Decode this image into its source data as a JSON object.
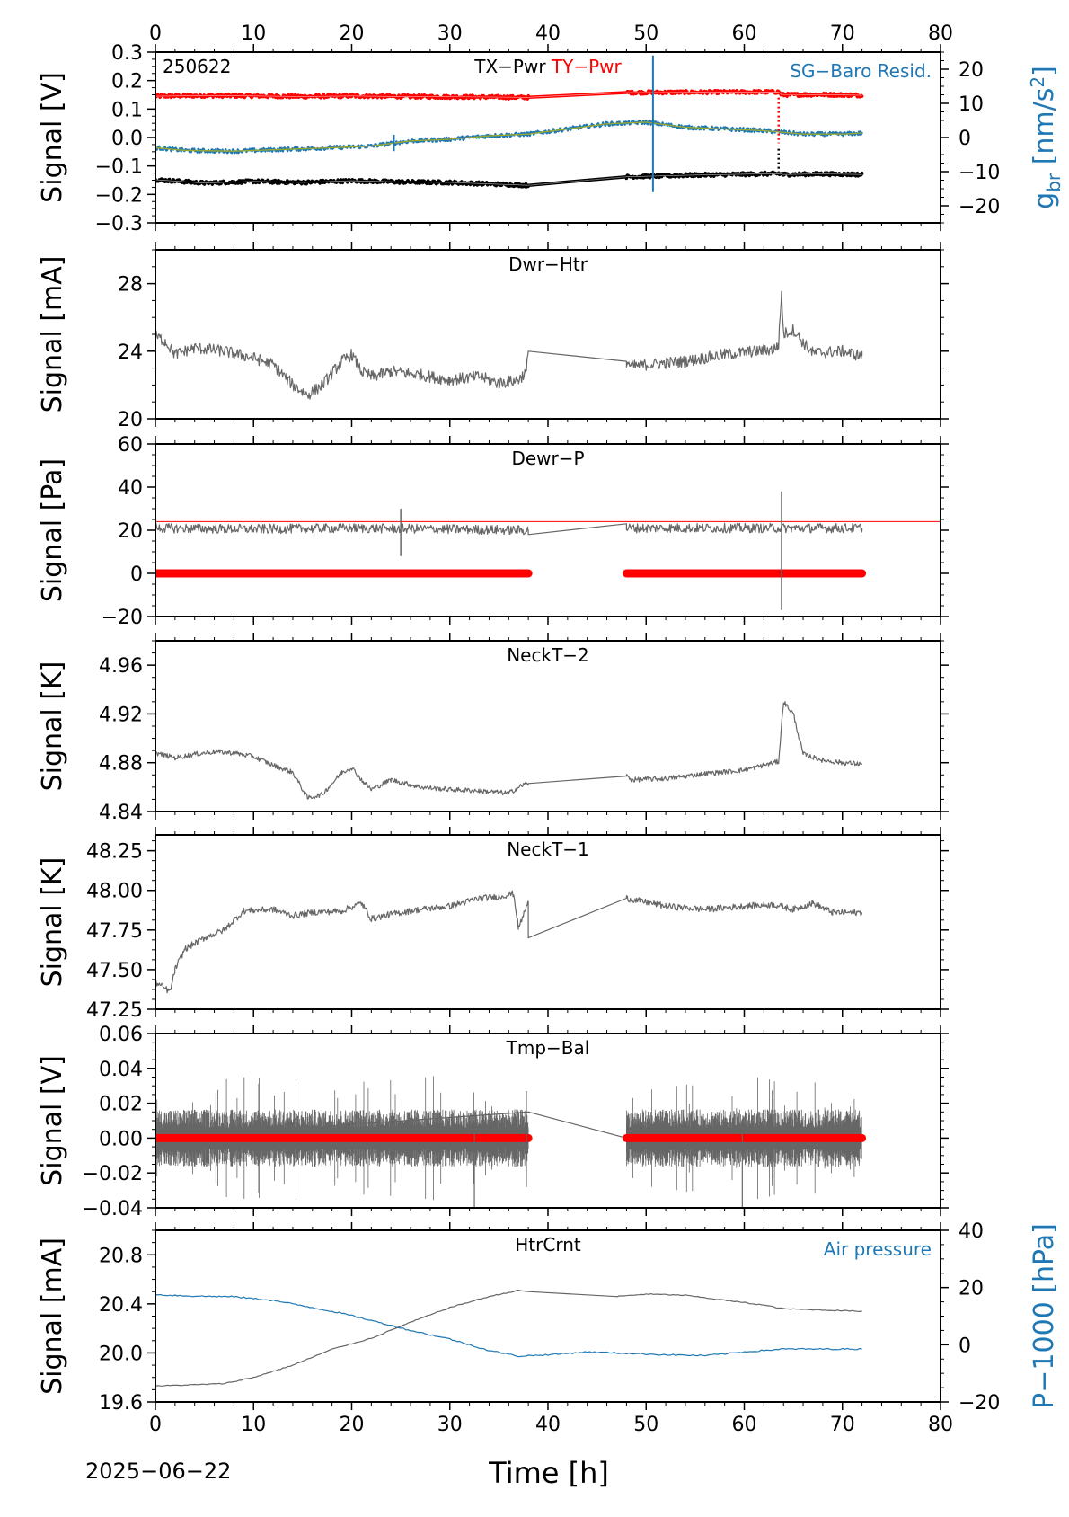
{
  "figure": {
    "date_label": "2025−06−22",
    "xlabel": "Time [h]",
    "xticks": [
      "0",
      "10",
      "20",
      "30",
      "40",
      "50",
      "60",
      "70",
      "80"
    ],
    "colors": {
      "black": "#000000",
      "gray": "#666666",
      "red": "#ff0000",
      "blue": "#1f78b4",
      "yellowgreen": "#9aa832"
    }
  },
  "chart_data": [
    {
      "type": "line",
      "panel": "tx-ty-sg",
      "annotation": "250622",
      "title_parts": [
        {
          "text": "TX−Pwr",
          "color": "#000000"
        },
        {
          "text": "TY−Pwr",
          "color": "#ff0000"
        }
      ],
      "right_label": "SG−Baro Resid.",
      "ylabel": "Signal [V]",
      "ylim": [
        -0.3,
        0.3
      ],
      "yticks": [
        "−0.3",
        "−0.2",
        "−0.1",
        "0.0",
        "0.1",
        "0.2",
        "0.3"
      ],
      "y2label_main": "g",
      "y2label_sub": "br",
      "y2label_rest": " [nm/s",
      "y2label_sup": "2",
      "y2label_end": "]",
      "y2lim": [
        -25,
        25
      ],
      "y2ticks": [
        "−20",
        "−10",
        "0",
        "10",
        "20"
      ],
      "xlim": [
        0,
        80
      ],
      "gap": [
        38,
        48
      ],
      "series": [
        {
          "color": "#ff0000",
          "axis": "left",
          "values": [
            [
              0,
              0.145
            ],
            [
              5,
              0.147
            ],
            [
              10,
              0.146
            ],
            [
              15,
              0.144
            ],
            [
              20,
              0.146
            ],
            [
              25,
              0.144
            ],
            [
              30,
              0.143
            ],
            [
              38,
              0.141
            ],
            [
              48,
              0.158
            ],
            [
              55,
              0.159
            ],
            [
              63.5,
              0.16
            ],
            [
              63.8,
              0.15
            ],
            [
              68,
              0.151
            ],
            [
              72,
              0.148
            ]
          ]
        },
        {
          "color": "#000000",
          "axis": "left",
          "values": [
            [
              0,
              -0.148
            ],
            [
              5,
              -0.16
            ],
            [
              10,
              -0.154
            ],
            [
              15,
              -0.158
            ],
            [
              20,
              -0.152
            ],
            [
              25,
              -0.156
            ],
            [
              30,
              -0.158
            ],
            [
              38,
              -0.168
            ],
            [
              48,
              -0.138
            ],
            [
              55,
              -0.132
            ],
            [
              63.5,
              -0.127
            ],
            [
              64,
              -0.13
            ],
            [
              68,
              -0.128
            ],
            [
              72,
              -0.13
            ]
          ]
        },
        {
          "color": "#1f78b4",
          "axis": "right",
          "values": [
            [
              0,
              -3
            ],
            [
              3,
              -3.8
            ],
            [
              8,
              -4
            ],
            [
              13,
              -3.5
            ],
            [
              18,
              -3
            ],
            [
              22,
              -2.5
            ],
            [
              26,
              -1
            ],
            [
              30,
              -0.5
            ],
            [
              34,
              0.5
            ],
            [
              38,
              1
            ],
            [
              42,
              2.5
            ],
            [
              46,
              4
            ],
            [
              50,
              4.5
            ],
            [
              54,
              3
            ],
            [
              58,
              2.5
            ],
            [
              62,
              2
            ],
            [
              66,
              1
            ],
            [
              70,
              1
            ],
            [
              72,
              1.3
            ]
          ]
        }
      ]
    },
    {
      "type": "line",
      "panel": "dwr-htr",
      "title": "Dwr−Htr",
      "ylabel": "Signal [mA]",
      "ylim": [
        20,
        30
      ],
      "yticks": [
        "20",
        "24",
        "28"
      ],
      "xlim": [
        0,
        80
      ],
      "series": [
        {
          "color": "#666666",
          "values": [
            [
              0,
              24.9
            ],
            [
              1,
              24.6
            ],
            [
              2,
              23.8
            ],
            [
              4,
              24.2
            ],
            [
              7,
              24
            ],
            [
              10,
              23.6
            ],
            [
              12,
              23.2
            ],
            [
              14,
              22
            ],
            [
              15.5,
              21.4
            ],
            [
              17,
              22
            ],
            [
              19,
              23.4
            ],
            [
              20,
              23.8
            ],
            [
              21,
              22.8
            ],
            [
              22,
              22.5
            ],
            [
              24,
              22.8
            ],
            [
              27,
              22.6
            ],
            [
              30,
              22.3
            ],
            [
              33,
              22.5
            ],
            [
              35,
              22.1
            ],
            [
              37,
              22.3
            ],
            [
              37.8,
              22.8
            ],
            [
              38,
              24
            ],
            [
              48,
              23.4
            ],
            [
              48.5,
              23.1
            ],
            [
              50,
              23.2
            ],
            [
              54,
              23.4
            ],
            [
              58,
              23.8
            ],
            [
              61,
              24
            ],
            [
              63,
              24.1
            ],
            [
              63.5,
              24.4
            ],
            [
              63.8,
              27.5
            ],
            [
              64,
              25
            ],
            [
              65,
              25.3
            ],
            [
              66,
              24.5
            ],
            [
              67,
              23.9
            ],
            [
              70,
              24
            ],
            [
              72,
              23.7
            ]
          ]
        }
      ]
    },
    {
      "type": "line",
      "panel": "dewr-p",
      "title": "Dewr−P",
      "ylabel": "Signal [Pa]",
      "ylim": [
        -20,
        60
      ],
      "yticks": [
        "−20",
        "0",
        "20",
        "40",
        "60"
      ],
      "xlim": [
        0,
        80
      ],
      "reference_line": 24,
      "series": [
        {
          "color": "#666666",
          "values": [
            [
              0,
              21
            ],
            [
              10,
              20.5
            ],
            [
              20,
              21
            ],
            [
              30,
              20.5
            ],
            [
              38,
              20
            ],
            [
              38,
              18
            ],
            [
              48,
              23
            ],
            [
              48,
              21
            ],
            [
              60,
              21
            ],
            [
              72,
              21
            ]
          ]
        },
        {
          "color": "#ff0000",
          "values": [
            [
              0,
              0
            ],
            [
              38,
              0
            ],
            [
              48,
              0
            ],
            [
              72,
              0
            ]
          ]
        }
      ]
    },
    {
      "type": "line",
      "panel": "neckt-2",
      "title": "NeckT−2",
      "ylabel": "Signal [K]",
      "ylim": [
        4.84,
        4.98
      ],
      "yticks": [
        "4.84",
        "4.88",
        "4.92",
        "4.96"
      ],
      "xlim": [
        0,
        80
      ],
      "series": [
        {
          "color": "#666666",
          "values": [
            [
              0,
              4.888
            ],
            [
              2,
              4.884
            ],
            [
              4,
              4.887
            ],
            [
              6,
              4.889
            ],
            [
              8,
              4.888
            ],
            [
              10,
              4.885
            ],
            [
              12,
              4.878
            ],
            [
              14,
              4.872
            ],
            [
              15.5,
              4.851
            ],
            [
              17,
              4.854
            ],
            [
              19,
              4.872
            ],
            [
              20,
              4.876
            ],
            [
              21,
              4.866
            ],
            [
              22,
              4.858
            ],
            [
              24,
              4.866
            ],
            [
              27,
              4.86
            ],
            [
              30,
              4.858
            ],
            [
              33,
              4.857
            ],
            [
              36,
              4.855
            ],
            [
              37.5,
              4.862
            ],
            [
              38,
              4.863
            ],
            [
              48,
              4.869
            ],
            [
              48.5,
              4.866
            ],
            [
              52,
              4.867
            ],
            [
              56,
              4.871
            ],
            [
              60,
              4.874
            ],
            [
              63,
              4.88
            ],
            [
              63.5,
              4.881
            ],
            [
              64,
              4.93
            ],
            [
              65,
              4.92
            ],
            [
              66,
              4.887
            ],
            [
              68,
              4.882
            ],
            [
              70,
              4.88
            ],
            [
              72,
              4.879
            ]
          ]
        }
      ]
    },
    {
      "type": "line",
      "panel": "neckt-1",
      "title": "NeckT−1",
      "ylabel": "Signal [K]",
      "ylim": [
        47.25,
        48.35
      ],
      "yticks": [
        "47.25",
        "47.50",
        "47.75",
        "48.00",
        "48.25"
      ],
      "xlim": [
        0,
        80
      ],
      "series": [
        {
          "color": "#666666",
          "values": [
            [
              0,
              47.42
            ],
            [
              1.5,
              47.36
            ],
            [
              2,
              47.5
            ],
            [
              3,
              47.63
            ],
            [
              5,
              47.7
            ],
            [
              7,
              47.75
            ],
            [
              9,
              47.87
            ],
            [
              12,
              47.88
            ],
            [
              14,
              47.84
            ],
            [
              16,
              47.86
            ],
            [
              19,
              47.87
            ],
            [
              21,
              47.92
            ],
            [
              22,
              47.82
            ],
            [
              24,
              47.85
            ],
            [
              27,
              47.88
            ],
            [
              30,
              47.9
            ],
            [
              33,
              47.95
            ],
            [
              35,
              47.96
            ],
            [
              36.5,
              47.98
            ],
            [
              37,
              47.76
            ],
            [
              38,
              47.93
            ],
            [
              38,
              47.7
            ],
            [
              48,
              47.95
            ],
            [
              52,
              47.9
            ],
            [
              56,
              47.88
            ],
            [
              60,
              47.9
            ],
            [
              63,
              47.91
            ],
            [
              65,
              47.88
            ],
            [
              67,
              47.92
            ],
            [
              69,
              47.86
            ],
            [
              72,
              47.86
            ]
          ]
        }
      ]
    },
    {
      "type": "line",
      "panel": "tmp-bal",
      "title": "Tmp−Bal",
      "ylabel": "Signal [V]",
      "ylim": [
        -0.04,
        0.06
      ],
      "yticks": [
        "−0.04",
        "−0.02",
        "0.00",
        "0.02",
        "0.04",
        "0.06"
      ],
      "xlim": [
        0,
        80
      ],
      "noise_band": 0.015,
      "series": [
        {
          "color": "#666666",
          "values": [
            [
              0,
              0
            ],
            [
              38,
              0.015
            ],
            [
              48,
              0
            ],
            [
              72,
              0
            ]
          ]
        },
        {
          "color": "#ff0000",
          "values": [
            [
              0,
              0
            ],
            [
              38,
              0
            ],
            [
              48,
              0
            ],
            [
              72,
              0
            ]
          ]
        }
      ]
    },
    {
      "type": "line",
      "panel": "htrcrnt",
      "title": "HtrCrnt",
      "right_label": "Air pressure",
      "ylabel": "Signal [mA]",
      "ylim": [
        19.6,
        21.0
      ],
      "yticks": [
        "19.6",
        "20.0",
        "20.4",
        "20.8"
      ],
      "y2label": "P−1000 [hPa]",
      "y2lim": [
        -20,
        40
      ],
      "y2ticks": [
        "−20",
        "0",
        "20",
        "40"
      ],
      "xlim": [
        0,
        80
      ],
      "series": [
        {
          "color": "#666666",
          "axis": "left",
          "values": [
            [
              0,
              19.73
            ],
            [
              4,
              19.74
            ],
            [
              7,
              19.75
            ],
            [
              10,
              19.8
            ],
            [
              14,
              19.9
            ],
            [
              18,
              20.03
            ],
            [
              22,
              20.12
            ],
            [
              26,
              20.25
            ],
            [
              30,
              20.37
            ],
            [
              34,
              20.46
            ],
            [
              37,
              20.51
            ],
            [
              38,
              20.5
            ],
            [
              47,
              20.46
            ],
            [
              50,
              20.48
            ],
            [
              54,
              20.47
            ],
            [
              58,
              20.43
            ],
            [
              62,
              20.39
            ],
            [
              64,
              20.36
            ],
            [
              68,
              20.35
            ],
            [
              72,
              20.34
            ]
          ]
        },
        {
          "color": "#1f78b4",
          "axis": "right",
          "values": [
            [
              0,
              17.5
            ],
            [
              4,
              17
            ],
            [
              8,
              16.8
            ],
            [
              12,
              15.5
            ],
            [
              16,
              13
            ],
            [
              19,
              11
            ],
            [
              22,
              8.5
            ],
            [
              26,
              5
            ],
            [
              30,
              2
            ],
            [
              34,
              -2
            ],
            [
              37,
              -4
            ],
            [
              40,
              -3.5
            ],
            [
              44,
              -2.5
            ],
            [
              48,
              -3
            ],
            [
              52,
              -3.5
            ],
            [
              56,
              -3.8
            ],
            [
              60,
              -2.5
            ],
            [
              64,
              -1.5
            ],
            [
              68,
              -1.5
            ],
            [
              72,
              -1.5
            ]
          ]
        }
      ]
    }
  ]
}
